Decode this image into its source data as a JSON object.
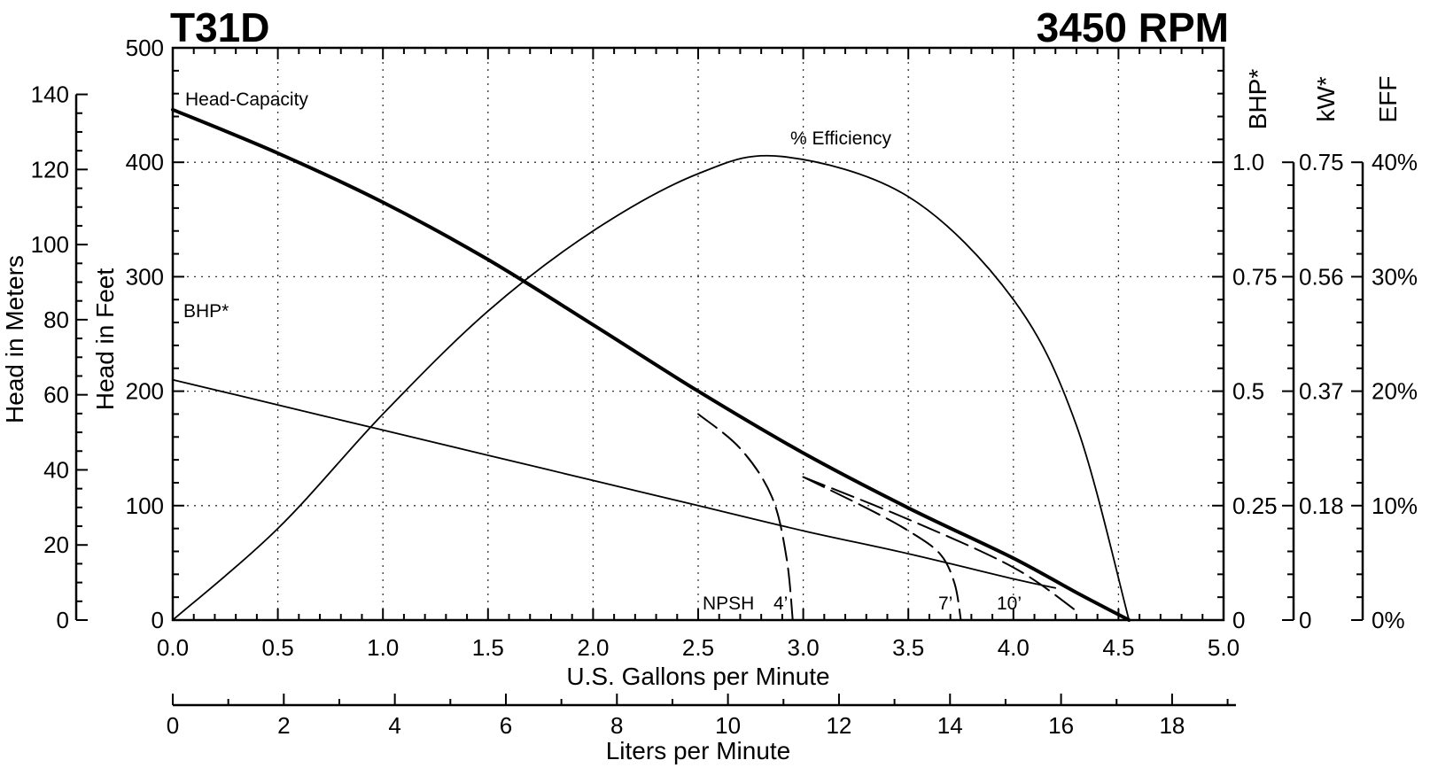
{
  "chart_data": {
    "type": "line",
    "title": "T31D",
    "subtitle": "3450 RPM",
    "xlabel": "U.S. Gallons per Minute",
    "xlabel_secondary": "Liters per Minute",
    "ylabel_feet": "Head in Feet",
    "ylabel_meters": "Head in Meters",
    "ylabel_bhp": "BHP*",
    "ylabel_kw": "kW*",
    "ylabel_eff": "EFF",
    "xlim": [
      0,
      5
    ],
    "ylim_feet": [
      0,
      500
    ],
    "grid": true,
    "x_ticks": [
      "0.0",
      "0.5",
      "1.0",
      "1.5",
      "2.0",
      "2.5",
      "3.0",
      "3.5",
      "4.0",
      "4.5",
      "5.0"
    ],
    "feet_ticks": [
      "0",
      "100",
      "200",
      "300",
      "400",
      "500"
    ],
    "meter_ticks": [
      "0",
      "20",
      "40",
      "60",
      "80",
      "100",
      "120",
      "140"
    ],
    "lpm_ticks": [
      "0",
      "2",
      "4",
      "6",
      "8",
      "10",
      "12",
      "14",
      "16",
      "18"
    ],
    "bhp_ticks": [
      "0",
      "0.25",
      "0.5",
      "0.75",
      "1.0"
    ],
    "kw_ticks": [
      "0",
      "0.18",
      "0.37",
      "0.56",
      "0.75"
    ],
    "eff_ticks": [
      "0%",
      "10%",
      "20%",
      "30%",
      "40%"
    ],
    "series": [
      {
        "name": "Head-Capacity",
        "unit": "ft",
        "x": [
          0,
          0.5,
          1.0,
          1.5,
          2.0,
          2.5,
          3.0,
          3.5,
          4.0,
          4.3,
          4.55
        ],
        "values": [
          446,
          408,
          365,
          315,
          258,
          200,
          146,
          98,
          54,
          24,
          0
        ]
      },
      {
        "name": "BHP*",
        "unit": "hp",
        "x": [
          0,
          0.5,
          1.0,
          1.5,
          2.0,
          2.5,
          3.0,
          3.5,
          4.0,
          4.2
        ],
        "values": [
          0.525,
          0.47,
          0.415,
          0.36,
          0.305,
          0.25,
          0.195,
          0.145,
          0.09,
          0.07
        ]
      },
      {
        "name": "% Efficiency",
        "unit": "%",
        "x": [
          0,
          0.5,
          1.0,
          1.5,
          2.0,
          2.5,
          2.9,
          3.5,
          4.0,
          4.3,
          4.55
        ],
        "values": [
          0,
          8,
          18,
          27,
          34,
          39,
          40.5,
          37,
          28,
          17,
          0
        ]
      },
      {
        "name": "NPSH 4'",
        "unit": "ft",
        "x": [
          2.5,
          2.7,
          2.85,
          2.92,
          2.95
        ],
        "values": [
          180,
          150,
          108,
          55,
          0
        ]
      },
      {
        "name": "NPSH 7'",
        "unit": "ft",
        "x": [
          3.0,
          3.3,
          3.5,
          3.65,
          3.72,
          3.75
        ],
        "values": [
          125,
          98,
          78,
          58,
          32,
          0
        ]
      },
      {
        "name": "NPSH 10'",
        "unit": "ft",
        "x": [
          3.0,
          3.5,
          4.0,
          4.3
        ],
        "values": [
          125,
          88,
          46,
          8
        ]
      }
    ],
    "annotations": {
      "head_capacity": "Head-Capacity",
      "bhp": "BHP*",
      "efficiency": "% Efficiency",
      "npsh": "NPSH",
      "npsh_4": "4’",
      "npsh_7": "7’",
      "npsh_10": "10’"
    }
  }
}
